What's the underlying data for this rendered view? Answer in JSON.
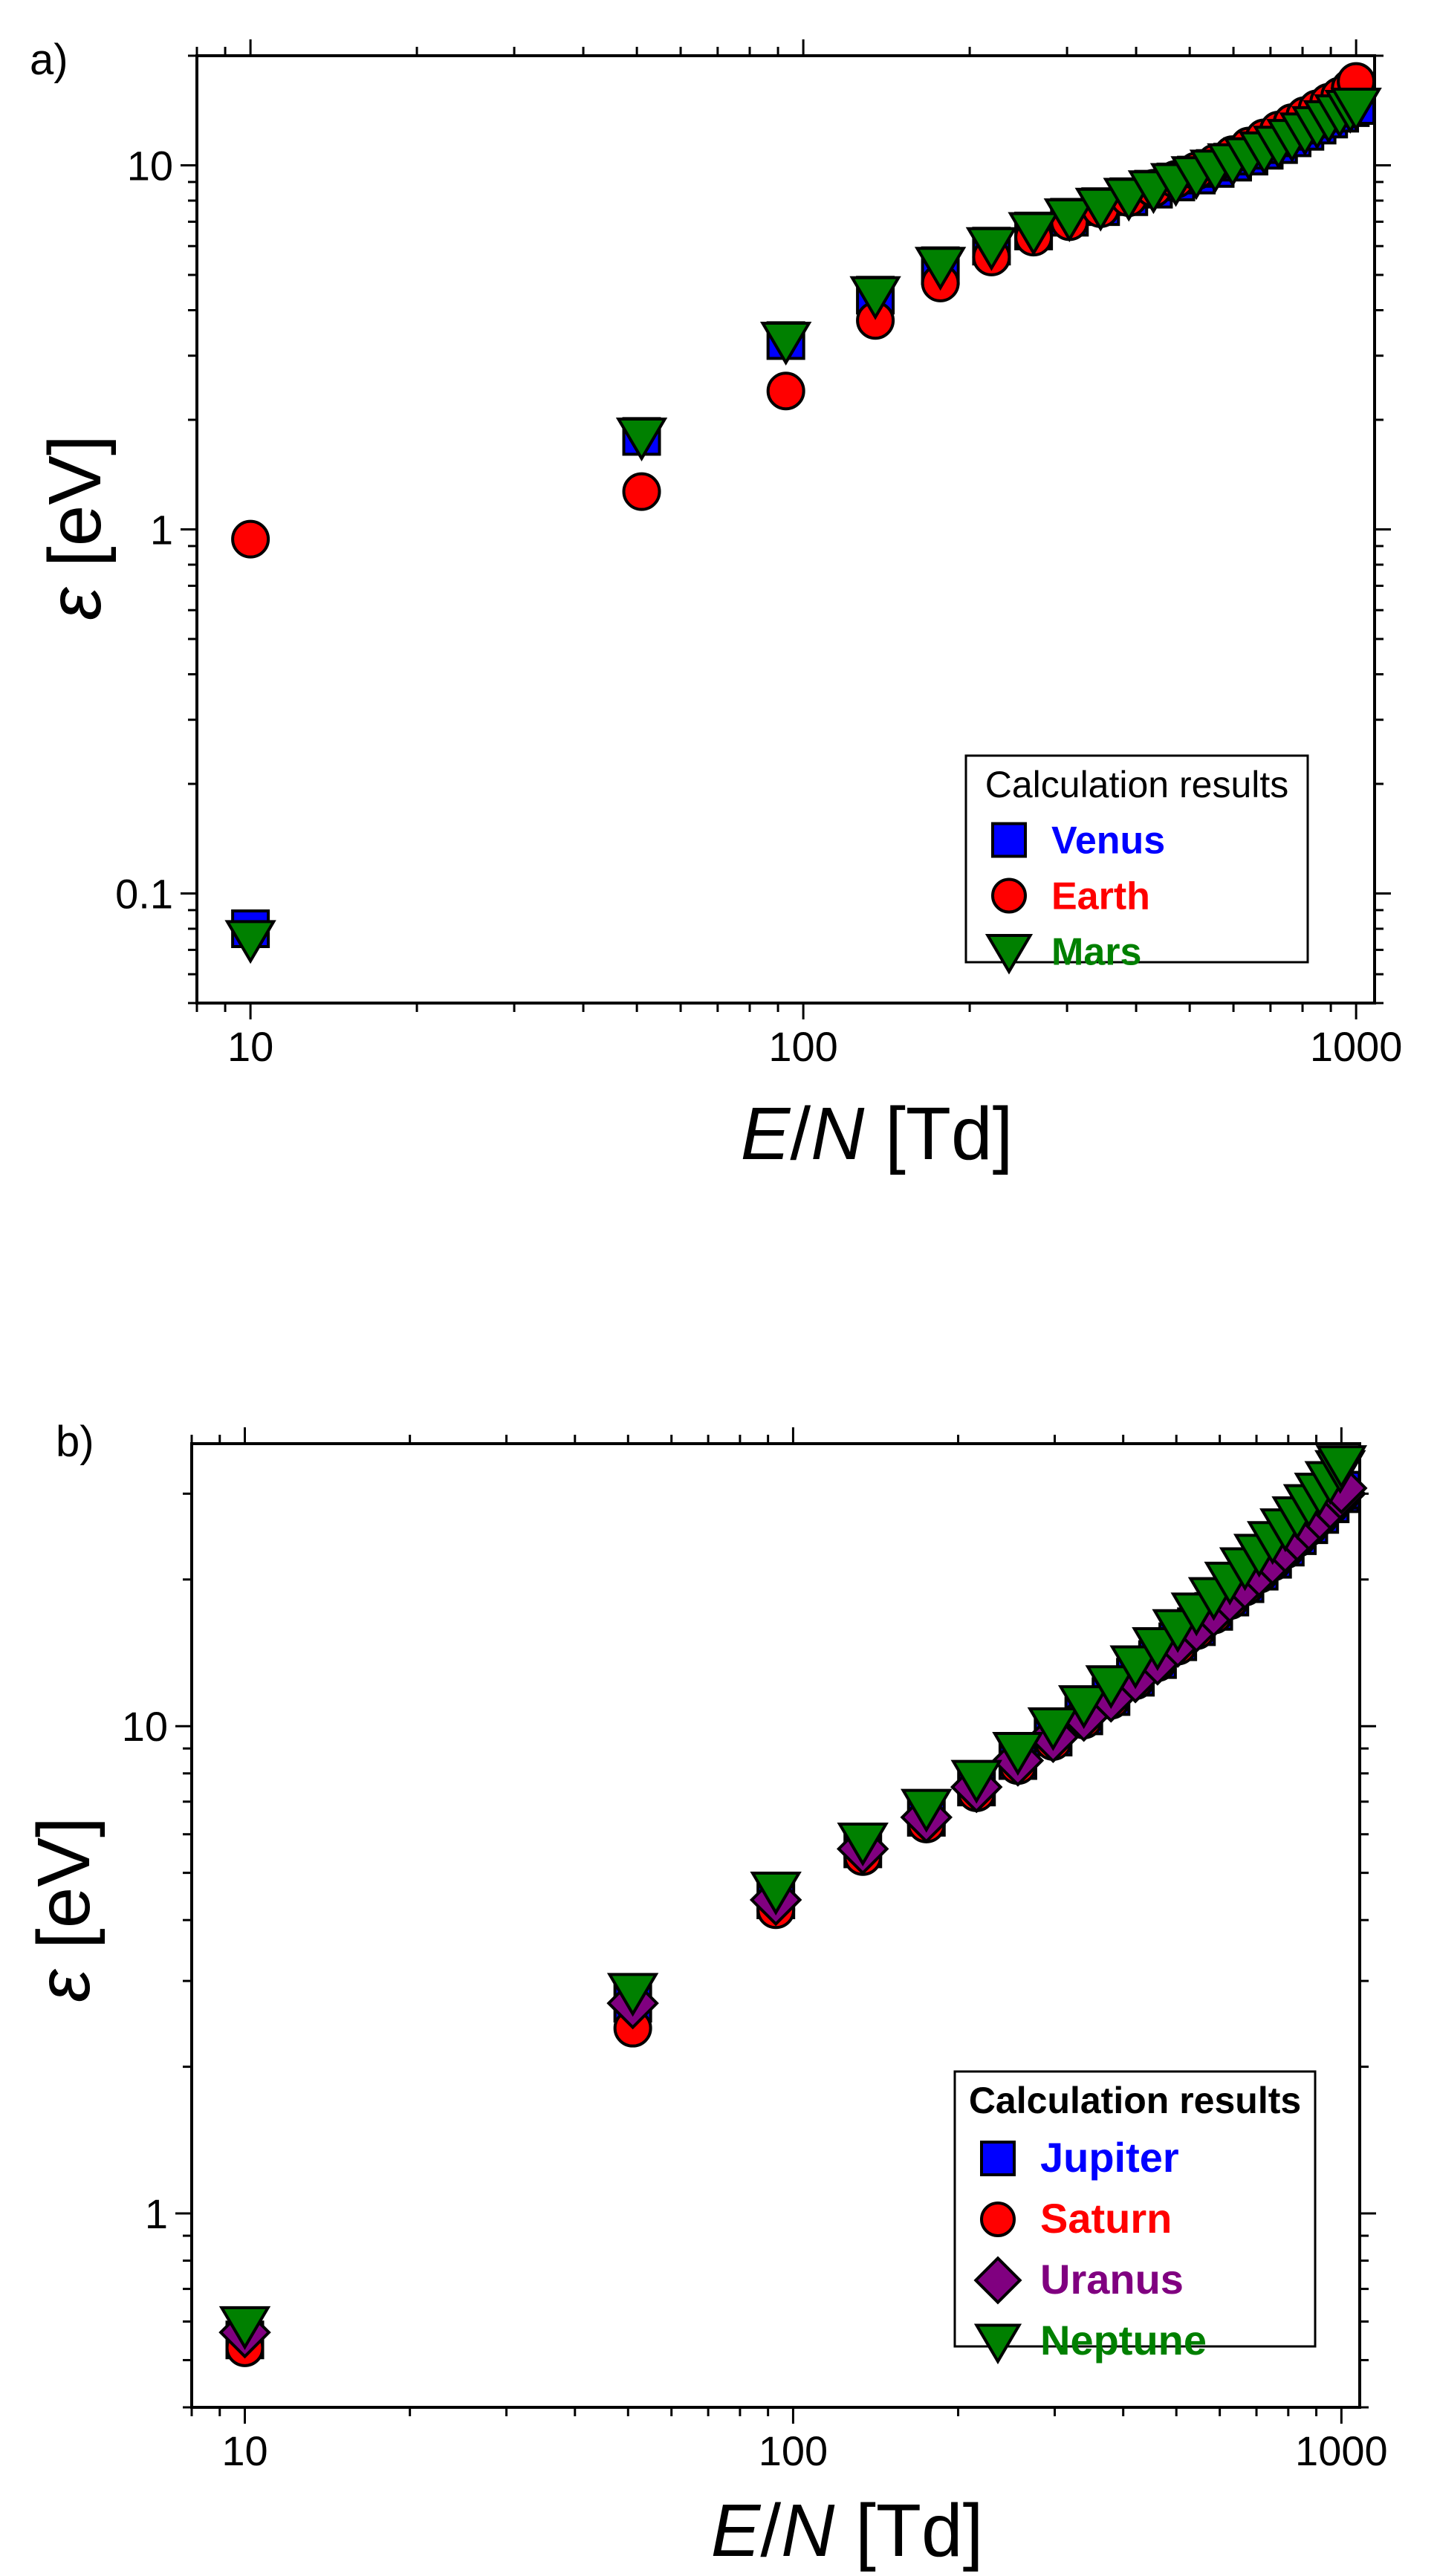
{
  "chart_data": [
    {
      "type": "scatter",
      "panel_label": "a)",
      "xscale": "log",
      "yscale": "log",
      "xlim": [
        8,
        1080
      ],
      "ylim": [
        0.05,
        20
      ],
      "xlabel": {
        "var1": "E",
        "slash": "/",
        "var2": "N",
        "unit": " [Td]"
      },
      "ylabel": {
        "symbol": "ε",
        "unit": " [eV]"
      },
      "x_ticks": [
        "10",
        "100",
        "1000"
      ],
      "y_ticks": [
        "0.1",
        "1",
        "10"
      ],
      "legend": {
        "title": "Calculation results",
        "title_bold": false,
        "position": "bottom-right"
      },
      "series": [
        {
          "name": "Venus",
          "marker": "square",
          "color": "#0000ff",
          "x": [
            10,
            51,
            93,
            135,
            177,
            219,
            261,
            303,
            345,
            388,
            430,
            472,
            514,
            556,
            598,
            640,
            682,
            724,
            766,
            808,
            850,
            892,
            934,
            976,
            1000
          ],
          "y": [
            0.08,
            1.8,
            3.3,
            4.4,
            5.3,
            6.0,
            6.6,
            7.2,
            7.7,
            8.2,
            8.6,
            9.0,
            9.4,
            9.8,
            10.2,
            10.6,
            11.0,
            11.4,
            11.9,
            12.4,
            12.9,
            13.4,
            13.9,
            14.4,
            14.6
          ]
        },
        {
          "name": "Earth",
          "marker": "circle",
          "color": "#ff0000",
          "x": [
            10,
            51,
            93,
            135,
            177,
            219,
            261,
            303,
            345,
            388,
            430,
            472,
            514,
            556,
            598,
            640,
            682,
            724,
            766,
            808,
            850,
            892,
            934,
            976,
            1000
          ],
          "y": [
            0.94,
            1.27,
            2.4,
            3.75,
            4.75,
            5.6,
            6.35,
            7.0,
            7.6,
            8.15,
            8.65,
            9.15,
            9.65,
            10.15,
            10.7,
            11.3,
            11.9,
            12.5,
            13.1,
            13.7,
            14.3,
            14.9,
            15.5,
            16.3,
            17.0
          ]
        },
        {
          "name": "Mars",
          "marker": "triangle-down",
          "color": "#008000",
          "x": [
            10,
            51,
            93,
            135,
            177,
            219,
            261,
            303,
            345,
            388,
            430,
            472,
            514,
            556,
            598,
            640,
            682,
            724,
            766,
            808,
            850,
            892,
            934,
            976,
            1000
          ],
          "y": [
            0.075,
            1.8,
            3.3,
            4.4,
            5.3,
            6.0,
            6.6,
            7.2,
            7.7,
            8.2,
            8.6,
            9.0,
            9.4,
            9.8,
            10.2,
            10.6,
            11.0,
            11.4,
            11.9,
            12.4,
            12.9,
            13.4,
            13.9,
            14.3,
            14.5
          ]
        }
      ]
    },
    {
      "type": "scatter",
      "panel_label": "b)",
      "xscale": "log",
      "yscale": "log",
      "xlim": [
        8,
        1080
      ],
      "ylim": [
        0.4,
        38
      ],
      "xlabel": {
        "var1": "E",
        "slash": "/",
        "var2": "N",
        "unit": " [Td]"
      },
      "ylabel": {
        "symbol": "ε",
        "unit": " [eV]"
      },
      "x_ticks": [
        "10",
        "100",
        "1000"
      ],
      "y_ticks": [
        "1",
        "10"
      ],
      "legend": {
        "title": "Calculation results",
        "title_bold": true,
        "position": "bottom-right"
      },
      "series": [
        {
          "name": "Jupiter",
          "marker": "square",
          "color": "#0000ff",
          "x": [
            10,
            51,
            93,
            134,
            175,
            216,
            257,
            298,
            339,
            380,
            421,
            462,
            503,
            544,
            585,
            626,
            667,
            708,
            749,
            790,
            831,
            872,
            913,
            954,
            995,
            1000
          ],
          "y": [
            0.55,
            2.7,
            4.4,
            5.6,
            6.5,
            7.5,
            8.5,
            9.5,
            10.5,
            11.5,
            12.6,
            13.7,
            14.9,
            16.0,
            17.2,
            18.4,
            19.6,
            20.8,
            22.0,
            23.3,
            24.6,
            25.9,
            27.2,
            28.6,
            30.0,
            30.5
          ]
        },
        {
          "name": "Saturn",
          "marker": "circle",
          "color": "#ff0000",
          "x": [
            10,
            51,
            93,
            134,
            175,
            216,
            257,
            298,
            339,
            380,
            421,
            462,
            503,
            544,
            585,
            626,
            667,
            708,
            749,
            790,
            831,
            872,
            913,
            954,
            995,
            1000
          ],
          "y": [
            0.53,
            2.4,
            4.2,
            5.4,
            6.3,
            7.3,
            8.3,
            9.3,
            10.3,
            11.3,
            12.4,
            13.5,
            14.6,
            15.7,
            16.9,
            18.1,
            19.3,
            20.5,
            21.7,
            23.0,
            24.3,
            25.6,
            26.9,
            28.3,
            29.7,
            30.0
          ]
        },
        {
          "name": "Uranus",
          "marker": "diamond",
          "color": "#800080",
          "x": [
            10,
            51,
            93,
            134,
            175,
            216,
            257,
            298,
            339,
            380,
            421,
            462,
            503,
            544,
            585,
            626,
            667,
            708,
            749,
            790,
            831,
            872,
            913,
            954,
            995,
            1000
          ],
          "y": [
            0.57,
            2.7,
            4.4,
            5.6,
            6.5,
            7.5,
            8.5,
            9.5,
            10.5,
            11.5,
            12.6,
            13.7,
            14.9,
            16.0,
            17.2,
            18.4,
            19.6,
            20.8,
            22.0,
            23.3,
            24.6,
            25.9,
            27.2,
            28.6,
            30.0,
            30.8
          ]
        },
        {
          "name": "Neptune",
          "marker": "triangle-down",
          "color": "#008000",
          "x": [
            10,
            51,
            93,
            134,
            175,
            216,
            257,
            298,
            339,
            380,
            421,
            462,
            503,
            544,
            585,
            626,
            667,
            708,
            749,
            790,
            831,
            872,
            913,
            954,
            995,
            1000
          ],
          "y": [
            0.59,
            2.85,
            4.6,
            5.8,
            6.8,
            7.8,
            8.9,
            10.0,
            11.1,
            12.2,
            13.4,
            14.6,
            15.9,
            17.2,
            18.5,
            19.9,
            21.3,
            22.7,
            24.1,
            25.6,
            27.1,
            28.7,
            30.3,
            32.0,
            33.7,
            34.5
          ]
        }
      ]
    }
  ]
}
